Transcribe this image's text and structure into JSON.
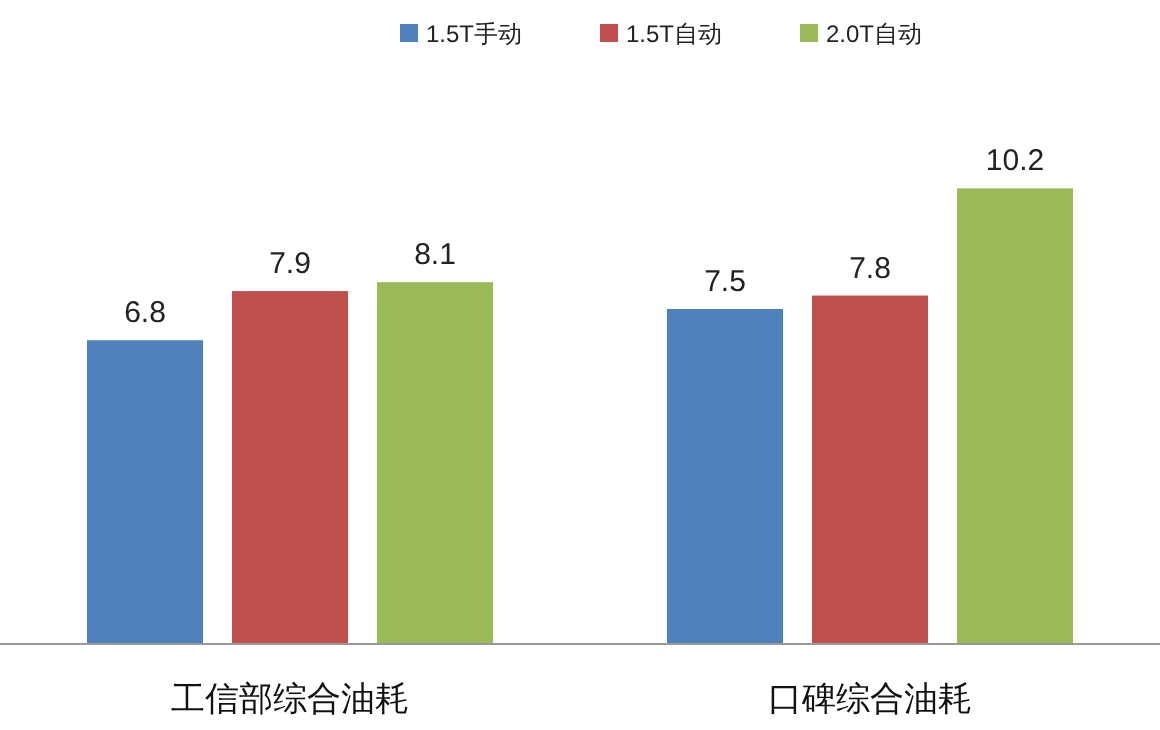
{
  "chart_data": {
    "type": "bar",
    "categories": [
      "工信部综合油耗",
      "口碑综合油耗"
    ],
    "series": [
      {
        "name": "1.5T手动",
        "color": "#4f81bd",
        "values": [
          6.8,
          7.5
        ]
      },
      {
        "name": "1.5T自动",
        "color": "#c0504d",
        "values": [
          7.9,
          7.8
        ]
      },
      {
        "name": "2.0T自动",
        "color": "#9bbb59",
        "values": [
          8.1,
          10.2
        ]
      }
    ],
    "data_labels": true,
    "legend": "top"
  }
}
